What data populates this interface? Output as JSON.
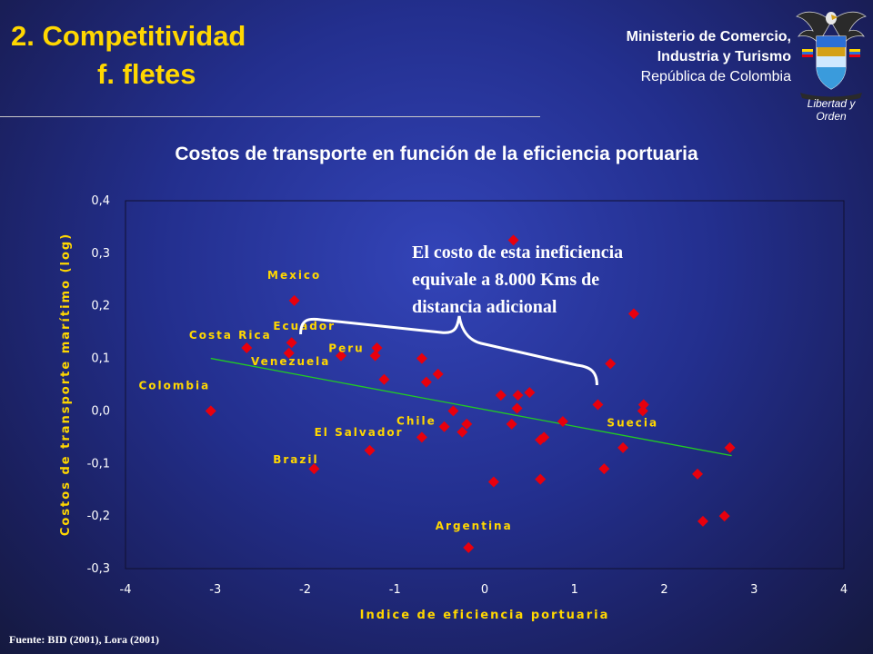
{
  "header": {
    "title_line1": "2. Competitividad",
    "title_line2": "f. fletes",
    "ministry_line1": "Ministerio de Comercio,",
    "ministry_line2": "Industria y Turismo",
    "ministry_line3": "República de Colombia",
    "logo_motto": "Libertad y Orden",
    "logo_icon": "colombia-coat-of-arms-icon"
  },
  "source": "Fuente: BID (2001), Lora (2001)",
  "colors": {
    "title": "#ffd700",
    "marker": "#e8000d",
    "trendline": "#22cc22",
    "annotation": "#ffffff"
  },
  "chart_data": {
    "type": "scatter",
    "title": "Costos de transporte en función de la eficiencia portuaria",
    "xlabel": "Indice de eficiencia portuaria",
    "ylabel": "Costos de transporte marítimo (log)",
    "xlim": [
      -4,
      4
    ],
    "ylim": [
      -0.3,
      0.4
    ],
    "xticks": [
      "-4",
      "-3",
      "-2",
      "-1",
      "0",
      "1",
      "2",
      "3",
      "4"
    ],
    "yticks": [
      "0,4",
      "0,3",
      "0,2",
      "0,1",
      "0,0",
      "-0,1",
      "-0,2",
      "-0,3"
    ],
    "grid": false,
    "points": [
      {
        "x": -3.05,
        "y": 0.0,
        "label": "Colombia"
      },
      {
        "x": -2.65,
        "y": 0.12,
        "label": "Costa Rica"
      },
      {
        "x": -2.12,
        "y": 0.21,
        "label": "Mexico"
      },
      {
        "x": -2.15,
        "y": 0.13,
        "label": "Ecuador"
      },
      {
        "x": -2.18,
        "y": 0.11,
        "label": "Venezuela"
      },
      {
        "x": -1.6,
        "y": 0.105,
        "label": "Peru"
      },
      {
        "x": -1.2,
        "y": 0.12
      },
      {
        "x": -1.22,
        "y": 0.105
      },
      {
        "x": -1.12,
        "y": 0.06
      },
      {
        "x": -0.7,
        "y": 0.1
      },
      {
        "x": -0.65,
        "y": 0.055
      },
      {
        "x": -0.52,
        "y": 0.07
      },
      {
        "x": -0.35,
        "y": 0.0
      },
      {
        "x": -0.45,
        "y": -0.03
      },
      {
        "x": -0.2,
        "y": -0.025
      },
      {
        "x": -0.25,
        "y": -0.04
      },
      {
        "x": -0.7,
        "y": -0.05,
        "label": "Chile"
      },
      {
        "x": -1.28,
        "y": -0.075,
        "label": "El Salvador"
      },
      {
        "x": -1.9,
        "y": -0.11,
        "label": "Brazil"
      },
      {
        "x": -0.18,
        "y": -0.26,
        "label": "Argentina"
      },
      {
        "x": 0.1,
        "y": -0.135
      },
      {
        "x": 0.18,
        "y": 0.03
      },
      {
        "x": 0.37,
        "y": 0.03
      },
      {
        "x": 0.5,
        "y": 0.035
      },
      {
        "x": 0.36,
        "y": 0.005
      },
      {
        "x": 0.3,
        "y": -0.025
      },
      {
        "x": 0.32,
        "y": 0.325
      },
      {
        "x": 0.62,
        "y": -0.055
      },
      {
        "x": 0.66,
        "y": -0.05
      },
      {
        "x": 0.62,
        "y": -0.13
      },
      {
        "x": 0.87,
        "y": -0.02
      },
      {
        "x": 1.26,
        "y": 0.012,
        "label": "Suecia"
      },
      {
        "x": 1.33,
        "y": -0.11
      },
      {
        "x": 1.4,
        "y": 0.09
      },
      {
        "x": 1.54,
        "y": -0.07
      },
      {
        "x": 1.66,
        "y": 0.185
      },
      {
        "x": 1.76,
        "y": 0.0
      },
      {
        "x": 1.77,
        "y": 0.012
      },
      {
        "x": 2.37,
        "y": -0.12
      },
      {
        "x": 2.43,
        "y": -0.21
      },
      {
        "x": 2.67,
        "y": -0.2
      },
      {
        "x": 2.73,
        "y": -0.07
      }
    ],
    "trendline": {
      "x": [
        -3.05,
        2.75
      ],
      "y": [
        0.1,
        -0.085
      ]
    },
    "annotation": {
      "lines": [
        "El costo de esta ineficiencia",
        "equivale a 8.000 Kms de",
        "distancia adicional"
      ],
      "brace_from_x": -2.05,
      "brace_to_x": 1.25
    }
  }
}
